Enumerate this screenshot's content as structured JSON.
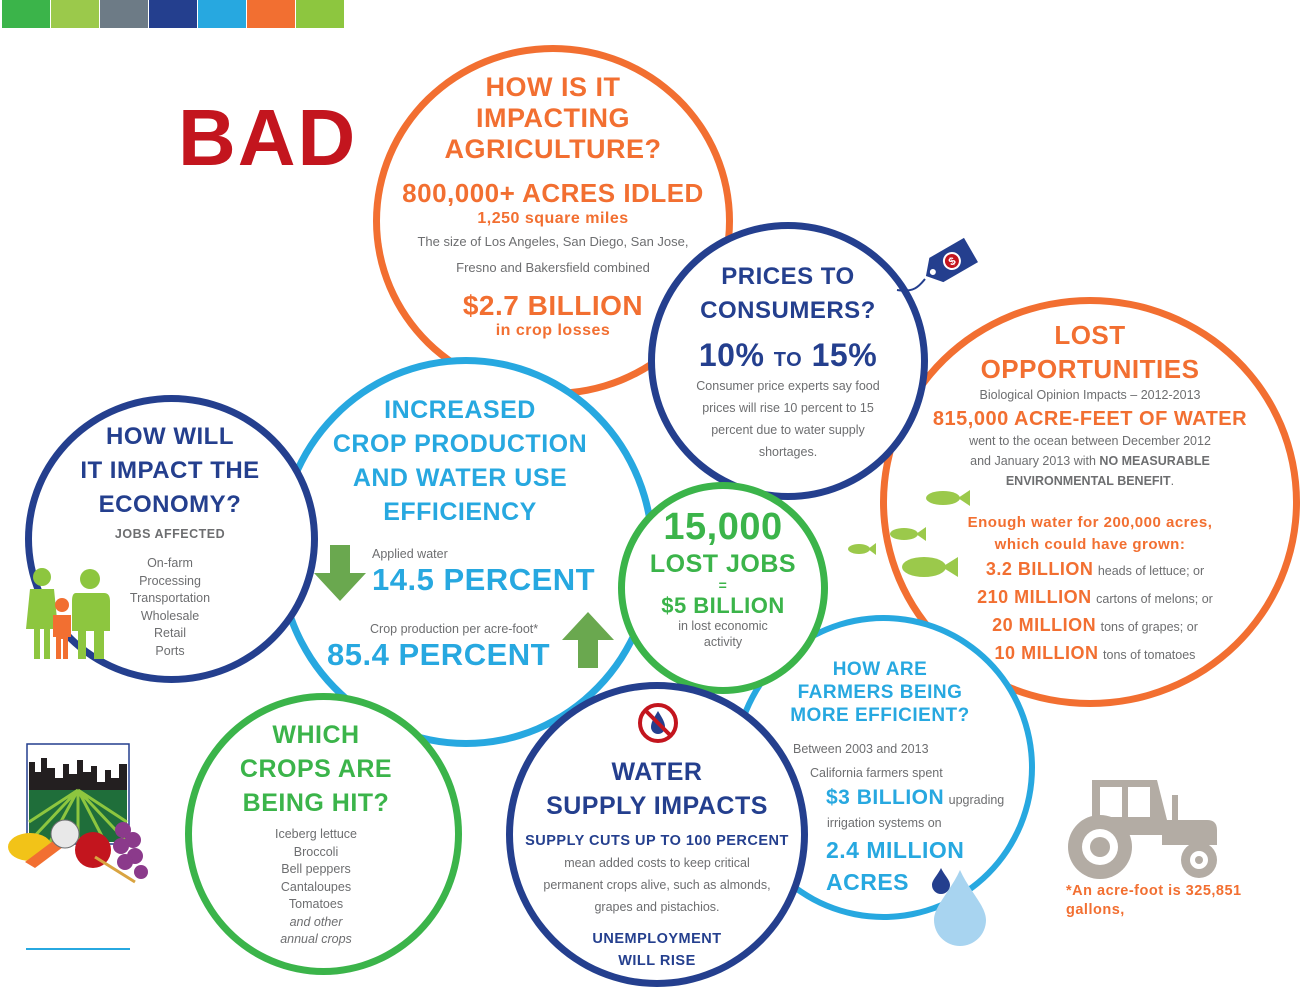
{
  "colors": {
    "orange": "#f26f31",
    "navy": "#243f8e",
    "blue": "#27a8e0",
    "green": "#3bb44a",
    "red": "#c3151e",
    "gray_text": "#6d6e70",
    "light_green": "#9bc94b",
    "tractor_gray": "#b3aca4"
  },
  "color_strip": [
    "#3bb44a",
    "#9bc94b",
    "#6d7b86",
    "#243f8e",
    "#27a8e0",
    "#f26f31",
    "#8dc63f"
  ],
  "bad_label": "BAD",
  "agriculture": {
    "heading": [
      "HOW IS IT",
      "IMPACTING",
      "AGRICULTURE?"
    ],
    "acres": "800,000+ ACRES IDLED",
    "square_miles": "1,250 square miles",
    "size_text": [
      "The size of Los Angeles, San Diego, San Jose,",
      "Fresno and Bakersfield combined"
    ],
    "billion": "$2.7 BILLION",
    "crop_losses": "in crop losses"
  },
  "prices": {
    "heading": [
      "PRICES TO",
      "CONSUMERS?"
    ],
    "pct_low": "10%",
    "to": "TO",
    "pct_high": "15%",
    "text": [
      "Consumer price experts say food",
      "prices will rise 10 percent to 15",
      "percent due to water supply",
      "shortages."
    ],
    "tag_icon": "price-tag-dollar"
  },
  "opportunities": {
    "heading": [
      "LOST",
      "OPPORTUNITIES"
    ],
    "subheading": "Biological Opinion Impacts – 2012-2013",
    "acre_feet": "815,000 ACRE-FEET OF WATER",
    "text1": "went to the ocean between December 2012",
    "text2_pre": "and January 2013 with ",
    "text2_bold": "NO MEASURABLE",
    "text3_bold": "ENVIRONMENTAL BENEFIT",
    "text3_post": ".",
    "enough": [
      "Enough water for 200,000 acres,",
      "which could have grown:"
    ],
    "crops": [
      {
        "amount": "3.2 BILLION",
        "desc": "heads of lettuce; or"
      },
      {
        "amount": "210 MILLION",
        "desc": "cartons of melons; or"
      },
      {
        "amount": "20 MILLION",
        "desc": "tons of grapes; or"
      },
      {
        "amount": "10 MILLION",
        "desc": "tons of tomatoes"
      }
    ]
  },
  "economy": {
    "heading": [
      "HOW WILL",
      "IT IMPACT THE",
      "ECONOMY?"
    ],
    "jobs_affected": "JOBS AFFECTED",
    "list": [
      "On-farm",
      "Processing",
      "Transportation",
      "Wholesale",
      "Retail",
      "Ports"
    ]
  },
  "efficiency": {
    "heading": [
      "INCREASED",
      "CROP PRODUCTION",
      "AND WATER USE",
      "EFFICIENCY"
    ],
    "applied_label": "Applied water",
    "applied_value": "14.5 PERCENT",
    "crop_label": "Crop production per acre-foot*",
    "crop_value": "85.4 PERCENT"
  },
  "jobs": {
    "number": "15,000",
    "lost_jobs": "LOST JOBS",
    "equals": "=",
    "billion": "$5 BILLION",
    "text": [
      "in lost economic",
      "activity"
    ]
  },
  "crops_hit": {
    "heading": [
      "WHICH",
      "CROPS ARE",
      "BEING HIT?"
    ],
    "list": [
      "Iceberg lettuce",
      "Broccoli",
      "Bell peppers",
      "Cantaloupes",
      "Tomatoes"
    ],
    "tail": [
      "and other",
      "annual crops"
    ]
  },
  "water_supply": {
    "heading": [
      "WATER",
      "SUPPLY IMPACTS"
    ],
    "cuts": "SUPPLY CUTS UP TO 100 PERCENT",
    "text": [
      "mean added costs to keep critical",
      "permanent crops alive, such as almonds,",
      "grapes and pistachios."
    ],
    "unemployment": [
      "UNEMPLOYMENT",
      "WILL RISE"
    ]
  },
  "farmers": {
    "heading": [
      "HOW ARE",
      "FARMERS BEING",
      "MORE EFFICIENT?"
    ],
    "text1": "Between 2003 and 2013",
    "text2": "California farmers spent",
    "billion": "$3 BILLION",
    "upgrading": "upgrading",
    "text3": "irrigation systems on",
    "million": "2.4 MILLION",
    "acres": "ACRES"
  },
  "footnote": [
    "*An acre-foot is 325,851",
    "gallons,"
  ]
}
